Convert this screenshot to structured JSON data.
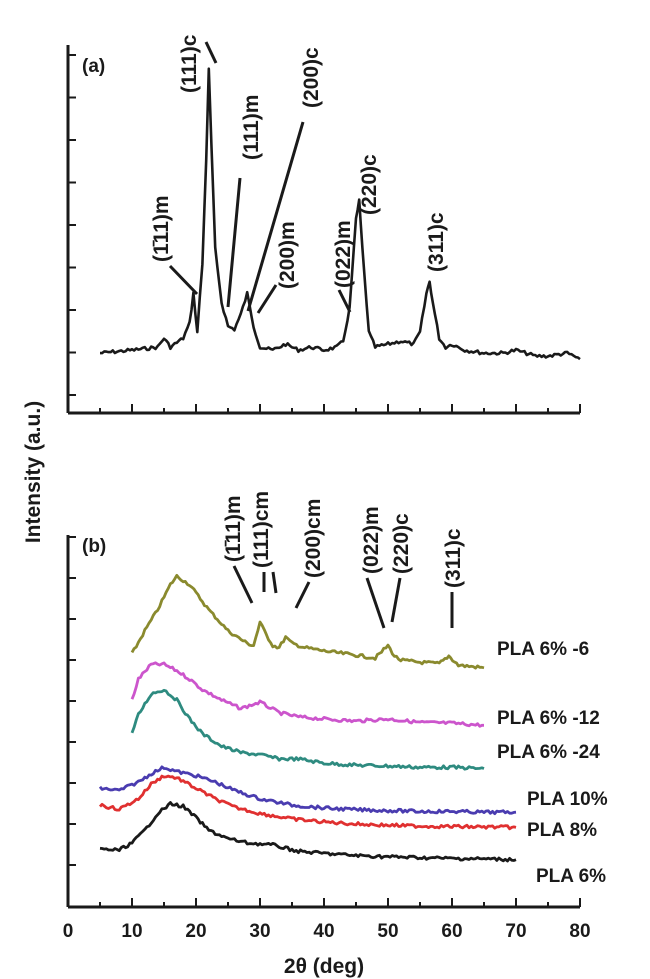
{
  "colors": {
    "black": "#1a1a1a",
    "olive": "#8a8a2e",
    "magenta": "#cc55cc",
    "teal": "#2e8b80",
    "blue": "#4a3cb0",
    "red": "#e03030"
  },
  "chart_data": [
    {
      "type": "line",
      "panel": "(a)",
      "xlim": [
        0,
        80
      ],
      "series": [
        {
          "color": "#1a1a1a",
          "x": [
            5,
            10,
            14,
            15,
            16,
            18,
            19,
            19.6,
            20.2,
            21,
            21.6,
            22,
            22.4,
            23,
            24,
            25,
            26,
            27,
            28,
            29,
            30,
            32,
            34,
            36,
            38,
            40,
            42,
            43,
            44,
            45,
            45.5,
            46,
            47,
            48,
            50,
            52,
            54,
            55,
            56,
            56.5,
            57,
            58,
            59,
            60,
            62,
            65,
            68,
            70,
            73,
            75,
            78,
            80
          ],
          "y": [
            0.05,
            0.06,
            0.07,
            0.1,
            0.07,
            0.1,
            0.15,
            0.25,
            0.12,
            0.35,
            0.7,
            1.0,
            0.75,
            0.4,
            0.22,
            0.14,
            0.13,
            0.18,
            0.25,
            0.14,
            0.07,
            0.06,
            0.08,
            0.06,
            0.07,
            0.06,
            0.07,
            0.09,
            0.2,
            0.5,
            0.56,
            0.4,
            0.12,
            0.07,
            0.08,
            0.09,
            0.08,
            0.12,
            0.25,
            0.29,
            0.22,
            0.1,
            0.07,
            0.08,
            0.06,
            0.05,
            0.05,
            0.06,
            0.04,
            0.04,
            0.05,
            0.03
          ]
        }
      ],
      "annotations": [
        "(1̄11)m",
        "(111)c",
        "(111)m",
        "(200)c",
        "(200)m",
        "(022)m",
        "(220)c",
        "(311)c"
      ]
    },
    {
      "type": "line",
      "panel": "(b)",
      "xlabel": "2θ (deg)",
      "xlim": [
        0,
        80
      ],
      "xticks": [
        0,
        10,
        20,
        30,
        40,
        50,
        60,
        70,
        80
      ],
      "series": [
        {
          "name": "PLA 6% -6",
          "color": "#8a8a2e",
          "x": [
            10,
            12,
            14,
            16,
            17,
            19,
            22,
            25,
            28,
            29,
            30,
            31,
            32,
            33,
            34,
            35,
            37,
            40,
            45,
            48,
            50,
            51,
            52,
            55,
            58,
            59.5,
            61,
            65
          ],
          "y": [
            4.55,
            5.1,
            5.6,
            6.2,
            6.4,
            6.2,
            5.6,
            5.1,
            4.8,
            4.75,
            5.3,
            5.0,
            4.75,
            4.7,
            4.95,
            4.8,
            4.7,
            4.62,
            4.52,
            4.45,
            4.75,
            4.5,
            4.4,
            4.35,
            4.32,
            4.5,
            4.28,
            4.22
          ]
        },
        {
          "name": "PLA 6% -12",
          "color": "#cc55cc",
          "x": [
            10,
            11,
            13,
            15,
            17,
            19,
            21,
            24,
            27,
            30,
            33,
            36,
            40,
            45,
            50,
            55,
            60,
            65
          ],
          "y": [
            3.45,
            3.95,
            4.3,
            4.3,
            4.15,
            3.95,
            3.7,
            3.45,
            3.25,
            3.4,
            3.15,
            3.05,
            3.0,
            2.95,
            3.0,
            2.92,
            2.9,
            2.85
          ]
        },
        {
          "name": "PLA 6% -24",
          "color": "#2e8b80",
          "x": [
            10,
            11,
            13,
            15,
            17,
            19,
            21,
            24,
            27,
            30,
            33,
            36,
            40,
            45,
            50,
            55,
            60,
            65
          ],
          "y": [
            2.65,
            3.1,
            3.6,
            3.7,
            3.45,
            3.0,
            2.65,
            2.35,
            2.2,
            2.15,
            2.05,
            2.05,
            1.95,
            1.9,
            1.88,
            1.85,
            1.85,
            1.82
          ]
        },
        {
          "name": "PLA 10%",
          "color": "#4a3cb0",
          "x": [
            5,
            8,
            11,
            13,
            15,
            17,
            20,
            23,
            26,
            30,
            35,
            40,
            45,
            50,
            55,
            60,
            65,
            70
          ],
          "y": [
            1.35,
            1.3,
            1.5,
            1.7,
            1.85,
            1.75,
            1.65,
            1.5,
            1.3,
            1.1,
            0.95,
            0.88,
            0.84,
            0.82,
            0.8,
            0.8,
            0.78,
            0.78
          ]
        },
        {
          "name": "PLA 8%",
          "color": "#e03030",
          "x": [
            5,
            8,
            11,
            13,
            15,
            17,
            20,
            23,
            26,
            30,
            35,
            40,
            45,
            50,
            55,
            60,
            65,
            70
          ],
          "y": [
            0.95,
            0.85,
            1.1,
            1.45,
            1.65,
            1.6,
            1.35,
            1.1,
            0.9,
            0.75,
            0.62,
            0.55,
            0.5,
            0.47,
            0.45,
            0.44,
            0.43,
            0.42
          ]
        },
        {
          "name": "PLA 6%",
          "color": "#1a1a1a",
          "x": [
            5,
            8,
            10,
            12,
            14,
            16,
            18,
            20,
            22,
            25,
            28,
            32,
            36,
            40,
            45,
            50,
            55,
            60,
            65,
            70
          ],
          "y": [
            -0.1,
            -0.12,
            0.05,
            0.35,
            0.75,
            0.98,
            0.92,
            0.65,
            0.35,
            0.15,
            0.05,
            0.0,
            -0.15,
            -0.2,
            -0.25,
            -0.28,
            -0.3,
            -0.32,
            -0.33,
            -0.35
          ]
        }
      ],
      "annotations": [
        "(1̄11)m",
        "(111)cm",
        "(200)cm",
        "(022)m",
        "(220)c",
        "(311)c"
      ]
    }
  ],
  "ylabel": "Intensity (a.u.)"
}
